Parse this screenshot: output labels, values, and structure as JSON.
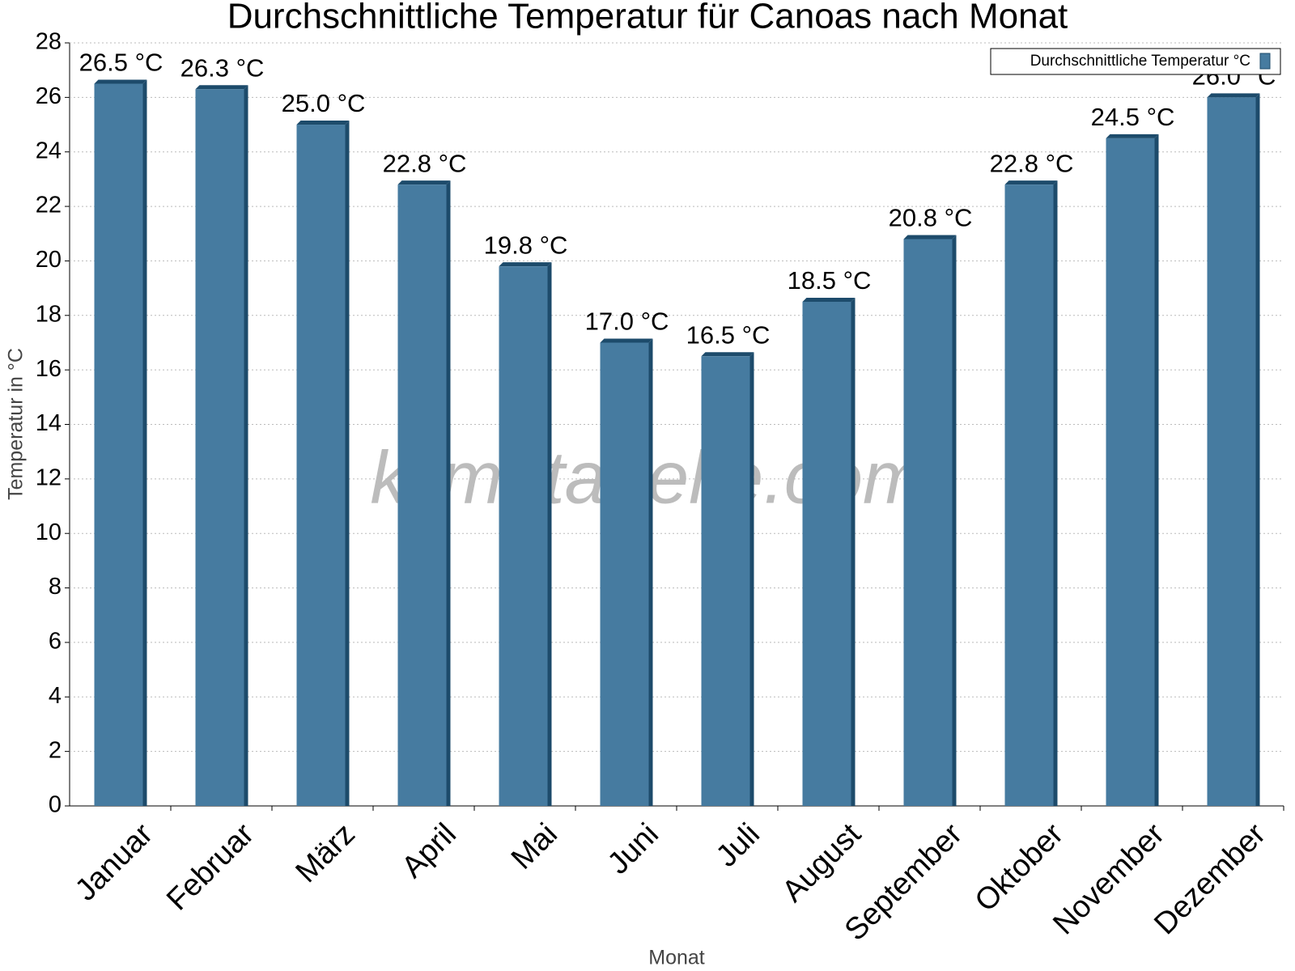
{
  "chart_data": {
    "type": "bar",
    "title": "Durchschnittliche Temperatur für Canoas nach Monat",
    "xlabel": "Monat",
    "ylabel": "Temperatur in °C",
    "watermark": "klimatabelle.com",
    "categories": [
      "Januar",
      "Februar",
      "März",
      "April",
      "Mai",
      "Juni",
      "Juli",
      "August",
      "September",
      "Oktober",
      "November",
      "Dezember"
    ],
    "series": [
      {
        "name": "Durchschnittliche Temperatur °C",
        "color": "#467ba0",
        "values": [
          26.5,
          26.3,
          25.0,
          22.8,
          19.8,
          17.0,
          16.5,
          18.5,
          20.8,
          22.8,
          24.5,
          26.0
        ],
        "value_labels": [
          "26.5 °C",
          "26.3 °C",
          "25.0 °C",
          "22.8 °C",
          "19.8 °C",
          "17.0 °C",
          "16.5 °C",
          "18.5 °C",
          "20.8 °C",
          "22.8 °C",
          "24.5 °C",
          "26.0 °C"
        ]
      }
    ],
    "ylim": [
      0,
      28
    ],
    "yticks": [
      0,
      2,
      4,
      6,
      8,
      10,
      12,
      14,
      16,
      18,
      20,
      22,
      24,
      26,
      28
    ],
    "grid": true,
    "legend": "upper right"
  }
}
